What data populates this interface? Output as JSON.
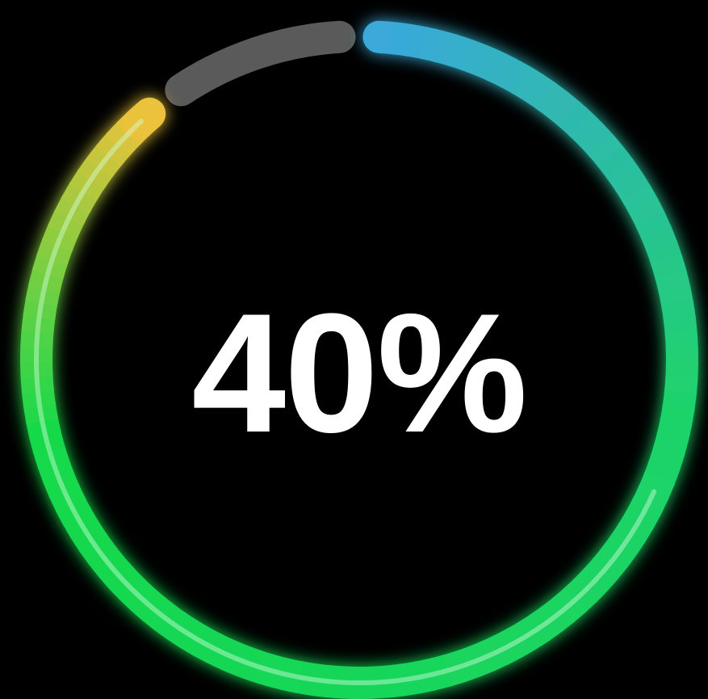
{
  "progress": {
    "label": "40%",
    "remaining_fraction": 0.0833
  },
  "colors": {
    "background": "#000000",
    "track": "#5a5a5a",
    "gradient_start": "#3aa8dc",
    "gradient_mid": "#1fd36a",
    "gradient_green": "#12d94a",
    "gradient_end": "#f0c23a",
    "text": "#ffffff"
  }
}
